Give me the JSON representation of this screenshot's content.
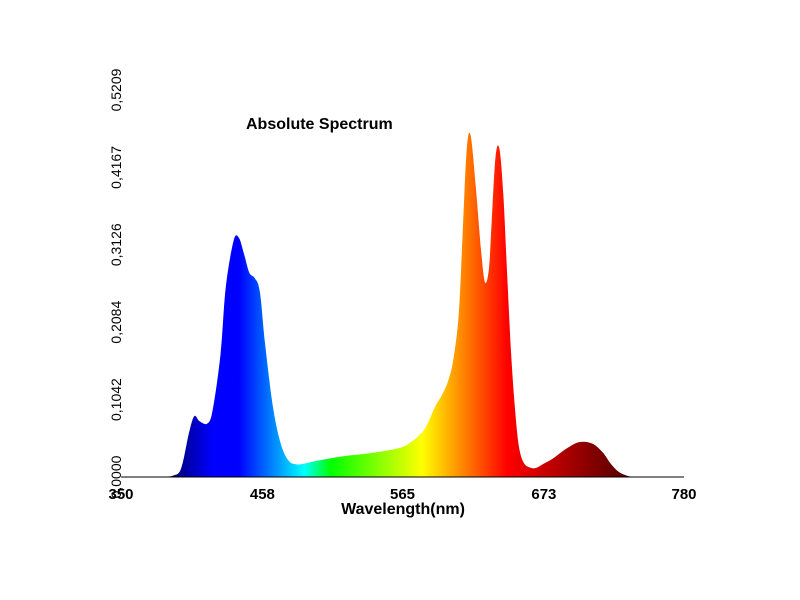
{
  "chart_data": {
    "type": "area",
    "title": "Absolute Spectrum",
    "xlabel": "Wavelength(nm)",
    "ylabel": "",
    "xlim": [
      350,
      780
    ],
    "ylim": [
      0,
      0.5209
    ],
    "x_ticks": [
      "350",
      "458",
      "565",
      "673",
      "780"
    ],
    "y_ticks": [
      "0,0000",
      "0,1042",
      "0,2084",
      "0,3126",
      "0,4167",
      "0,5209"
    ],
    "grid": false,
    "legend": "none",
    "fill": "wavelength-colored gradient",
    "series": [
      {
        "x": [
          380,
          390,
          396,
          402,
          406,
          410,
          416,
          420,
          426,
          430,
          436,
          440,
          444,
          448,
          452,
          456,
          460,
          466,
          472,
          478,
          484,
          490,
          500,
          520,
          540,
          560,
          570,
          580,
          585,
          590,
          595,
          600,
          604,
          608,
          611,
          614,
          617,
          621,
          625,
          628,
          631,
          633,
          636,
          639,
          642,
          645,
          648,
          651,
          654,
          658,
          664,
          668,
          672,
          680,
          690,
          700,
          710,
          718,
          724,
          730,
          736,
          742,
          748,
          754,
          760
        ],
        "y": [
          0.0,
          0.002,
          0.012,
          0.06,
          0.082,
          0.075,
          0.072,
          0.09,
          0.165,
          0.255,
          0.318,
          0.322,
          0.3,
          0.275,
          0.268,
          0.25,
          0.18,
          0.095,
          0.045,
          0.022,
          0.017,
          0.018,
          0.022,
          0.028,
          0.032,
          0.038,
          0.045,
          0.06,
          0.075,
          0.095,
          0.11,
          0.13,
          0.16,
          0.22,
          0.33,
          0.44,
          0.46,
          0.39,
          0.305,
          0.262,
          0.28,
          0.34,
          0.43,
          0.442,
          0.38,
          0.27,
          0.165,
          0.09,
          0.04,
          0.018,
          0.012,
          0.013,
          0.017,
          0.025,
          0.038,
          0.047,
          0.045,
          0.033,
          0.018,
          0.007,
          0.002,
          0.0,
          0.0,
          0.0,
          0.0
        ]
      }
    ]
  }
}
